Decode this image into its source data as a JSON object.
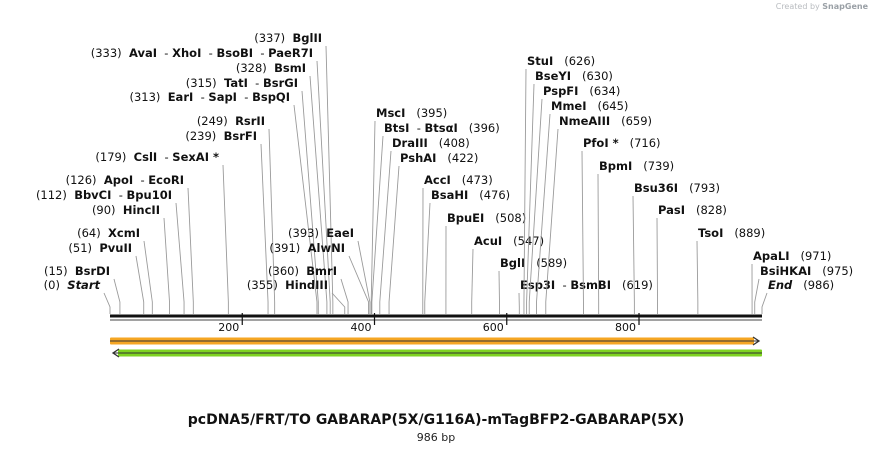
{
  "credit": {
    "text": "Created by",
    "brand": "SnapGene"
  },
  "sequence": {
    "length_bp": 986,
    "ruler_ticks": [
      "200",
      "400",
      "600",
      "800"
    ],
    "ruler_tick_values": [
      200,
      400,
      600,
      800
    ]
  },
  "features": [
    {
      "name": "forward-arrow",
      "direction": "forward",
      "start": 1,
      "end": 986,
      "color": "#f5a623"
    },
    {
      "name": "reverse-arrow",
      "direction": "reverse",
      "start": 1,
      "end": 986,
      "color": "#7ed321"
    }
  ],
  "sites": [
    {
      "pos": 0,
      "pos_text": "(0)",
      "names": [
        "Start"
      ],
      "style": "italic"
    },
    {
      "pos": 15,
      "pos_text": "(15)",
      "names": [
        "BsrDI"
      ]
    },
    {
      "pos": 51,
      "pos_text": "(51)",
      "names": [
        "PvuII"
      ]
    },
    {
      "pos": 64,
      "pos_text": "(64)",
      "names": [
        "XcmI"
      ]
    },
    {
      "pos": 90,
      "pos_text": "(90)",
      "names": [
        "HincII"
      ]
    },
    {
      "pos": 112,
      "pos_text": "(112)",
      "names": [
        "BbvCI",
        "Bpu10I"
      ]
    },
    {
      "pos": 126,
      "pos_text": "(126)",
      "names": [
        "ApoI",
        "EcoRI"
      ]
    },
    {
      "pos": 179,
      "pos_text": "(179)",
      "names": [
        "CslI",
        "SexAI *"
      ]
    },
    {
      "pos": 239,
      "pos_text": "(239)",
      "names": [
        "BsrFI"
      ]
    },
    {
      "pos": 249,
      "pos_text": "(249)",
      "names": [
        "RsrII"
      ]
    },
    {
      "pos": 313,
      "pos_text": "(313)",
      "names": [
        "EarI",
        "SapI",
        "BspQI"
      ]
    },
    {
      "pos": 315,
      "pos_text": "(315)",
      "names": [
        "TatI",
        "BsrGI"
      ]
    },
    {
      "pos": 328,
      "pos_text": "(328)",
      "names": [
        "BsmI"
      ]
    },
    {
      "pos": 333,
      "pos_text": "(333)",
      "names": [
        "AvaI",
        "XhoI",
        "BsoBI",
        "PaeR7I"
      ]
    },
    {
      "pos": 337,
      "pos_text": "(337)",
      "names": [
        "BglII"
      ]
    },
    {
      "pos": 355,
      "pos_text": "(355)",
      "names": [
        "HindIII"
      ]
    },
    {
      "pos": 360,
      "pos_text": "(360)",
      "names": [
        "BmrI"
      ]
    },
    {
      "pos": 391,
      "pos_text": "(391)",
      "names": [
        "AlwNI"
      ]
    },
    {
      "pos": 393,
      "pos_text": "(393)",
      "names": [
        "EaeI"
      ]
    },
    {
      "pos": 395,
      "pos_text": "(395)",
      "names": [
        "MscI"
      ]
    },
    {
      "pos": 396,
      "pos_text": "(396)",
      "names": [
        "BtsI",
        "BtsαI"
      ]
    },
    {
      "pos": 408,
      "pos_text": "(408)",
      "names": [
        "DraIII"
      ]
    },
    {
      "pos": 422,
      "pos_text": "(422)",
      "names": [
        "PshAI"
      ]
    },
    {
      "pos": 473,
      "pos_text": "(473)",
      "names": [
        "AccI"
      ]
    },
    {
      "pos": 476,
      "pos_text": "(476)",
      "names": [
        "BsaHI"
      ]
    },
    {
      "pos": 508,
      "pos_text": "(508)",
      "names": [
        "BpuEI"
      ]
    },
    {
      "pos": 547,
      "pos_text": "(547)",
      "names": [
        "AcuI"
      ]
    },
    {
      "pos": 589,
      "pos_text": "(589)",
      "names": [
        "BglI"
      ]
    },
    {
      "pos": 619,
      "pos_text": "(619)",
      "names": [
        "Esp3I",
        "BsmBI"
      ]
    },
    {
      "pos": 626,
      "pos_text": "(626)",
      "names": [
        "StuI"
      ]
    },
    {
      "pos": 630,
      "pos_text": "(630)",
      "names": [
        "BseYI"
      ]
    },
    {
      "pos": 634,
      "pos_text": "(634)",
      "names": [
        "PspFI"
      ]
    },
    {
      "pos": 645,
      "pos_text": "(645)",
      "names": [
        "MmeI"
      ]
    },
    {
      "pos": 659,
      "pos_text": "(659)",
      "names": [
        "NmeAIII"
      ]
    },
    {
      "pos": 716,
      "pos_text": "(716)",
      "names": [
        "PfoI *"
      ]
    },
    {
      "pos": 739,
      "pos_text": "(739)",
      "names": [
        "BpmI"
      ]
    },
    {
      "pos": 793,
      "pos_text": "(793)",
      "names": [
        "Bsu36I"
      ]
    },
    {
      "pos": 828,
      "pos_text": "(828)",
      "names": [
        "PasI"
      ]
    },
    {
      "pos": 889,
      "pos_text": "(889)",
      "names": [
        "TsoI"
      ]
    },
    {
      "pos": 971,
      "pos_text": "(971)",
      "names": [
        "ApaLI"
      ]
    },
    {
      "pos": 975,
      "pos_text": "(975)",
      "names": [
        "BsiHKAI"
      ]
    },
    {
      "pos": 986,
      "pos_text": "(986)",
      "names": [
        "End"
      ],
      "style": "italic"
    }
  ],
  "title": "pcDNA5/FRT/TO GABARAP(5X/G116A)-mTagBFP2-GABARAP(5X)",
  "subtitle": "986 bp"
}
